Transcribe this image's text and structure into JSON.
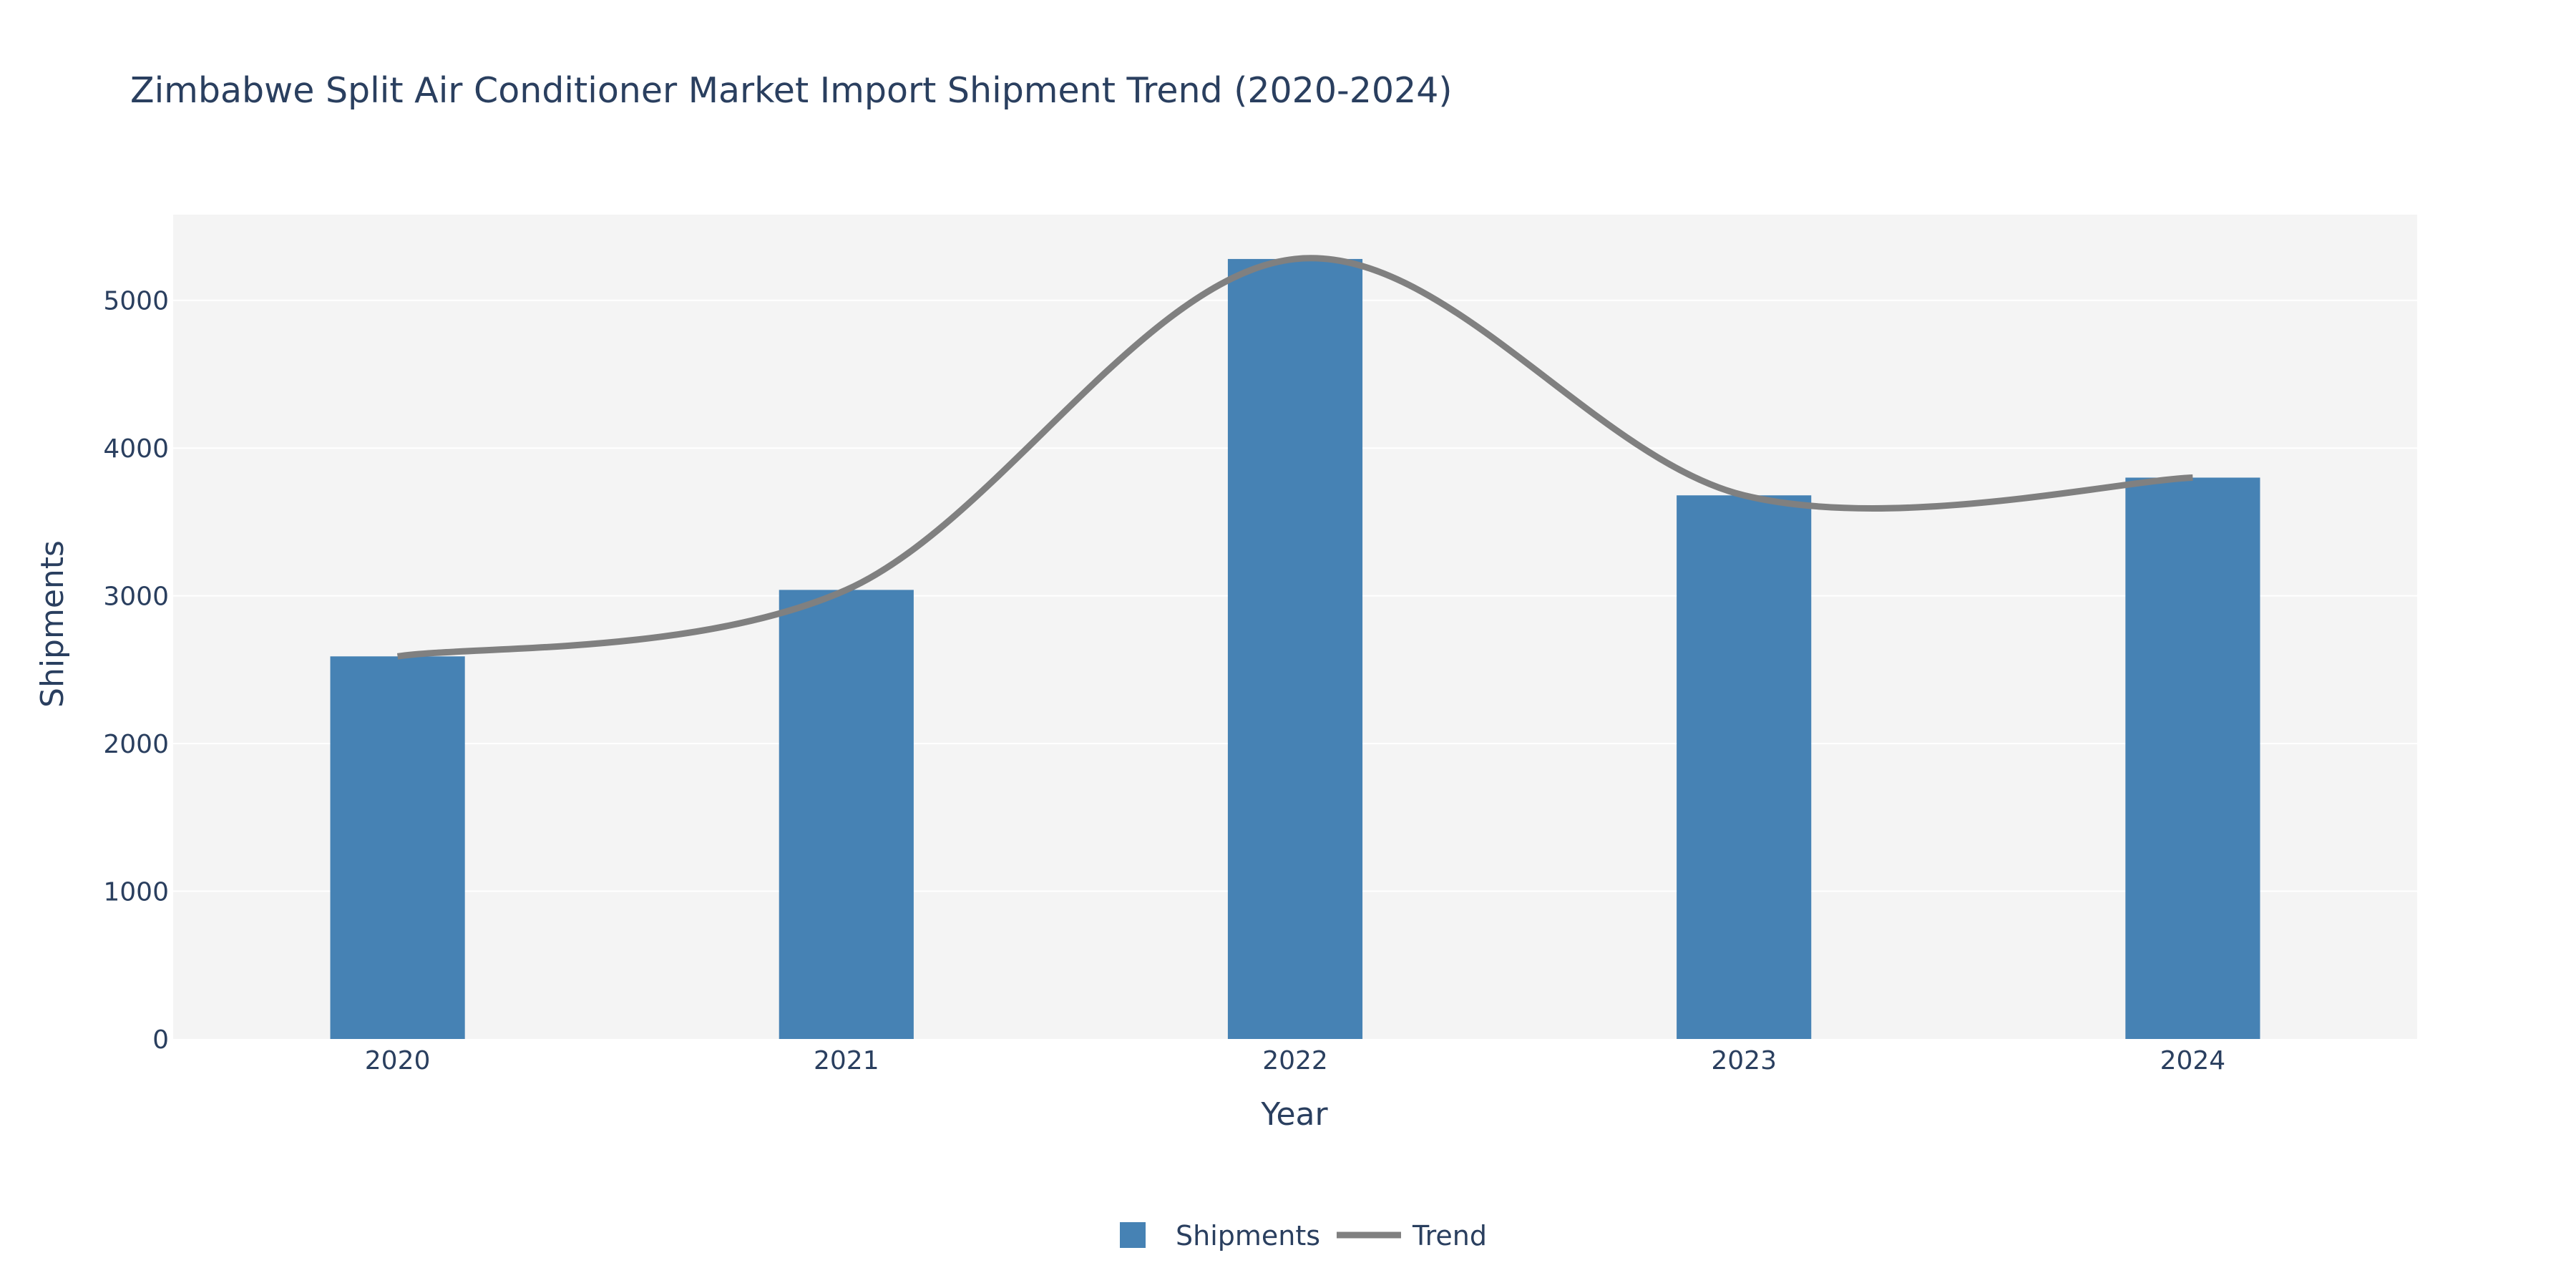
{
  "chart_data": {
    "type": "bar",
    "title": "Zimbabwe Split Air Conditioner Market Import Shipment Trend (2020-2024)",
    "xlabel": "Year",
    "ylabel": "Shipments",
    "categories": [
      "2020",
      "2021",
      "2022",
      "2023",
      "2024"
    ],
    "series": [
      {
        "name": "Shipments",
        "type": "bar",
        "values": [
          2590,
          3040,
          5280,
          3680,
          3800
        ],
        "color": "#4682b4"
      },
      {
        "name": "Trend",
        "type": "line",
        "values": [
          2590,
          3040,
          5280,
          3680,
          3800
        ],
        "color": "#808080"
      }
    ],
    "ylim": [
      0,
      5580
    ],
    "yticks": [
      0,
      1000,
      2000,
      3000,
      4000,
      5000
    ],
    "grid": true,
    "legend_position": "bottom-center",
    "plot_background": "#f4f4f4"
  }
}
